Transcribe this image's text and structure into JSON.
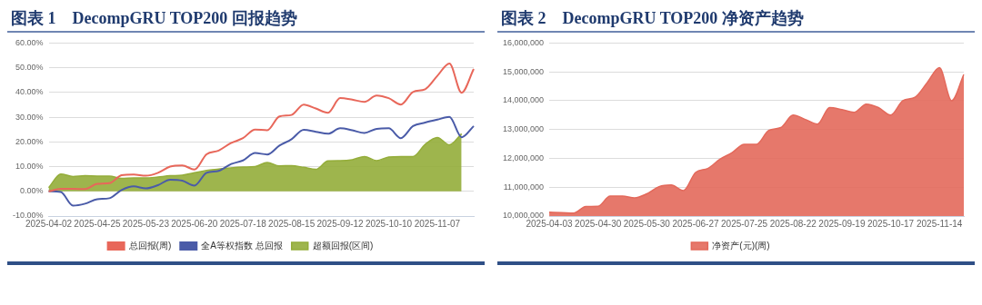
{
  "chart_data": [
    {
      "type": "line",
      "title": "图表 1　DecompGRU TOP200 回报趋势",
      "categories": [
        "2025-04-02",
        null,
        null,
        null,
        "2025-04-25",
        null,
        null,
        null,
        "2025-05-23",
        null,
        null,
        null,
        "2025-06-20",
        null,
        null,
        null,
        "2025-07-18",
        null,
        null,
        null,
        "2025-08-15",
        null,
        null,
        null,
        "2025-09-12",
        null,
        null,
        null,
        "2025-10-10",
        null,
        null,
        null,
        "2025-11-07",
        null,
        null,
        null
      ],
      "series": [
        {
          "name": "超额回报(区间)",
          "type": "area",
          "color": "#94ad3a",
          "values": [
            1.5,
            7.0,
            6.0,
            6.3,
            6.2,
            6.2,
            5.2,
            5.4,
            5.4,
            5.8,
            6.3,
            6.5,
            7.5,
            8.5,
            9.0,
            9.5,
            9.8,
            10.0,
            11.7,
            10.3,
            10.4,
            9.7,
            8.9,
            12.3,
            12.4,
            12.8,
            14.1,
            12.4,
            13.9,
            14.1,
            14.1,
            19.0,
            21.8,
            18.8,
            23.3,
            null
          ]
        },
        {
          "name": "总回报(周)",
          "type": "line",
          "color": "#e8675a",
          "values": [
            0,
            1.0,
            1.0,
            0.9,
            3.0,
            3.3,
            6.5,
            6.8,
            6.3,
            7.5,
            10.0,
            10.5,
            8.8,
            15.0,
            16.5,
            19.5,
            21.5,
            25.0,
            24.7,
            30.3,
            30.9,
            35.1,
            33.5,
            31.8,
            37.7,
            37.1,
            36.2,
            38.8,
            37.7,
            35.1,
            40.2,
            41.3,
            46.7,
            51.7,
            39.9,
            49.5
          ]
        },
        {
          "name": "全A等权指数 总回报",
          "type": "line",
          "color": "#4a5ba8",
          "values": [
            0,
            -0.3,
            -5.8,
            -5.0,
            -3.2,
            -2.8,
            0.5,
            2.0,
            1.2,
            2.5,
            4.7,
            4.3,
            2.3,
            7.5,
            8.3,
            11.0,
            12.5,
            15.5,
            14.9,
            18.5,
            21.1,
            24.9,
            24.1,
            23.3,
            25.5,
            24.7,
            23.6,
            25.3,
            25.5,
            21.5,
            26.4,
            27.8,
            29.0,
            30.1,
            21.9,
            26.4
          ]
        }
      ],
      "ylim": [
        -10,
        60
      ],
      "yticks": [
        {
          "value": -10,
          "label": "-10.00%"
        },
        {
          "value": 0,
          "label": "0.00%"
        },
        {
          "value": 10,
          "label": "10.00%"
        },
        {
          "value": 20,
          "label": "20.00%"
        },
        {
          "value": 30,
          "label": "30.00%"
        },
        {
          "value": 40,
          "label": "40.00%"
        },
        {
          "value": 50,
          "label": "50.00%"
        },
        {
          "value": 60,
          "label": "60.00%"
        }
      ],
      "grid": "y",
      "legend": "bottom",
      "marker": "none"
    },
    {
      "type": "area",
      "title": "图表 2　DecompGRU TOP200 净资产趋势",
      "categories": [
        "2025-04-03",
        null,
        null,
        null,
        "2025-04-30",
        null,
        null,
        null,
        "2025-05-30",
        null,
        null,
        null,
        "2025-06-27",
        null,
        null,
        null,
        "2025-07-25",
        null,
        null,
        null,
        "2025-08-22",
        null,
        null,
        null,
        "2025-09-19",
        null,
        null,
        null,
        "2025-10-17",
        null,
        null,
        null,
        "2025-11-14",
        null,
        null
      ],
      "series": [
        {
          "name": "净资产(元)(周)",
          "color": "#e3695b",
          "values": [
            10130000,
            10120000,
            10100000,
            10330000,
            10340000,
            10690000,
            10690000,
            10630000,
            10770000,
            11020000,
            11080000,
            10880000,
            11510000,
            11650000,
            11970000,
            12200000,
            12490000,
            12490000,
            12970000,
            13070000,
            13500000,
            13350000,
            13190000,
            13760000,
            13690000,
            13600000,
            13880000,
            13760000,
            13500000,
            14000000,
            14120000,
            14630000,
            15150000,
            14000000,
            14910000
          ]
        }
      ],
      "ylim": [
        10000000,
        16000000
      ],
      "yticks": [
        {
          "value": 10000000,
          "label": "10,000,000"
        },
        {
          "value": 11000000,
          "label": "11,000,000"
        },
        {
          "value": 12000000,
          "label": "12,000,000"
        },
        {
          "value": 13000000,
          "label": "13,000,000"
        },
        {
          "value": 14000000,
          "label": "14,000,000"
        },
        {
          "value": 15000000,
          "label": "15,000,000"
        },
        {
          "value": 16000000,
          "label": "16,000,000"
        }
      ],
      "grid": "y",
      "legend": "bottom",
      "marker": "none"
    }
  ]
}
